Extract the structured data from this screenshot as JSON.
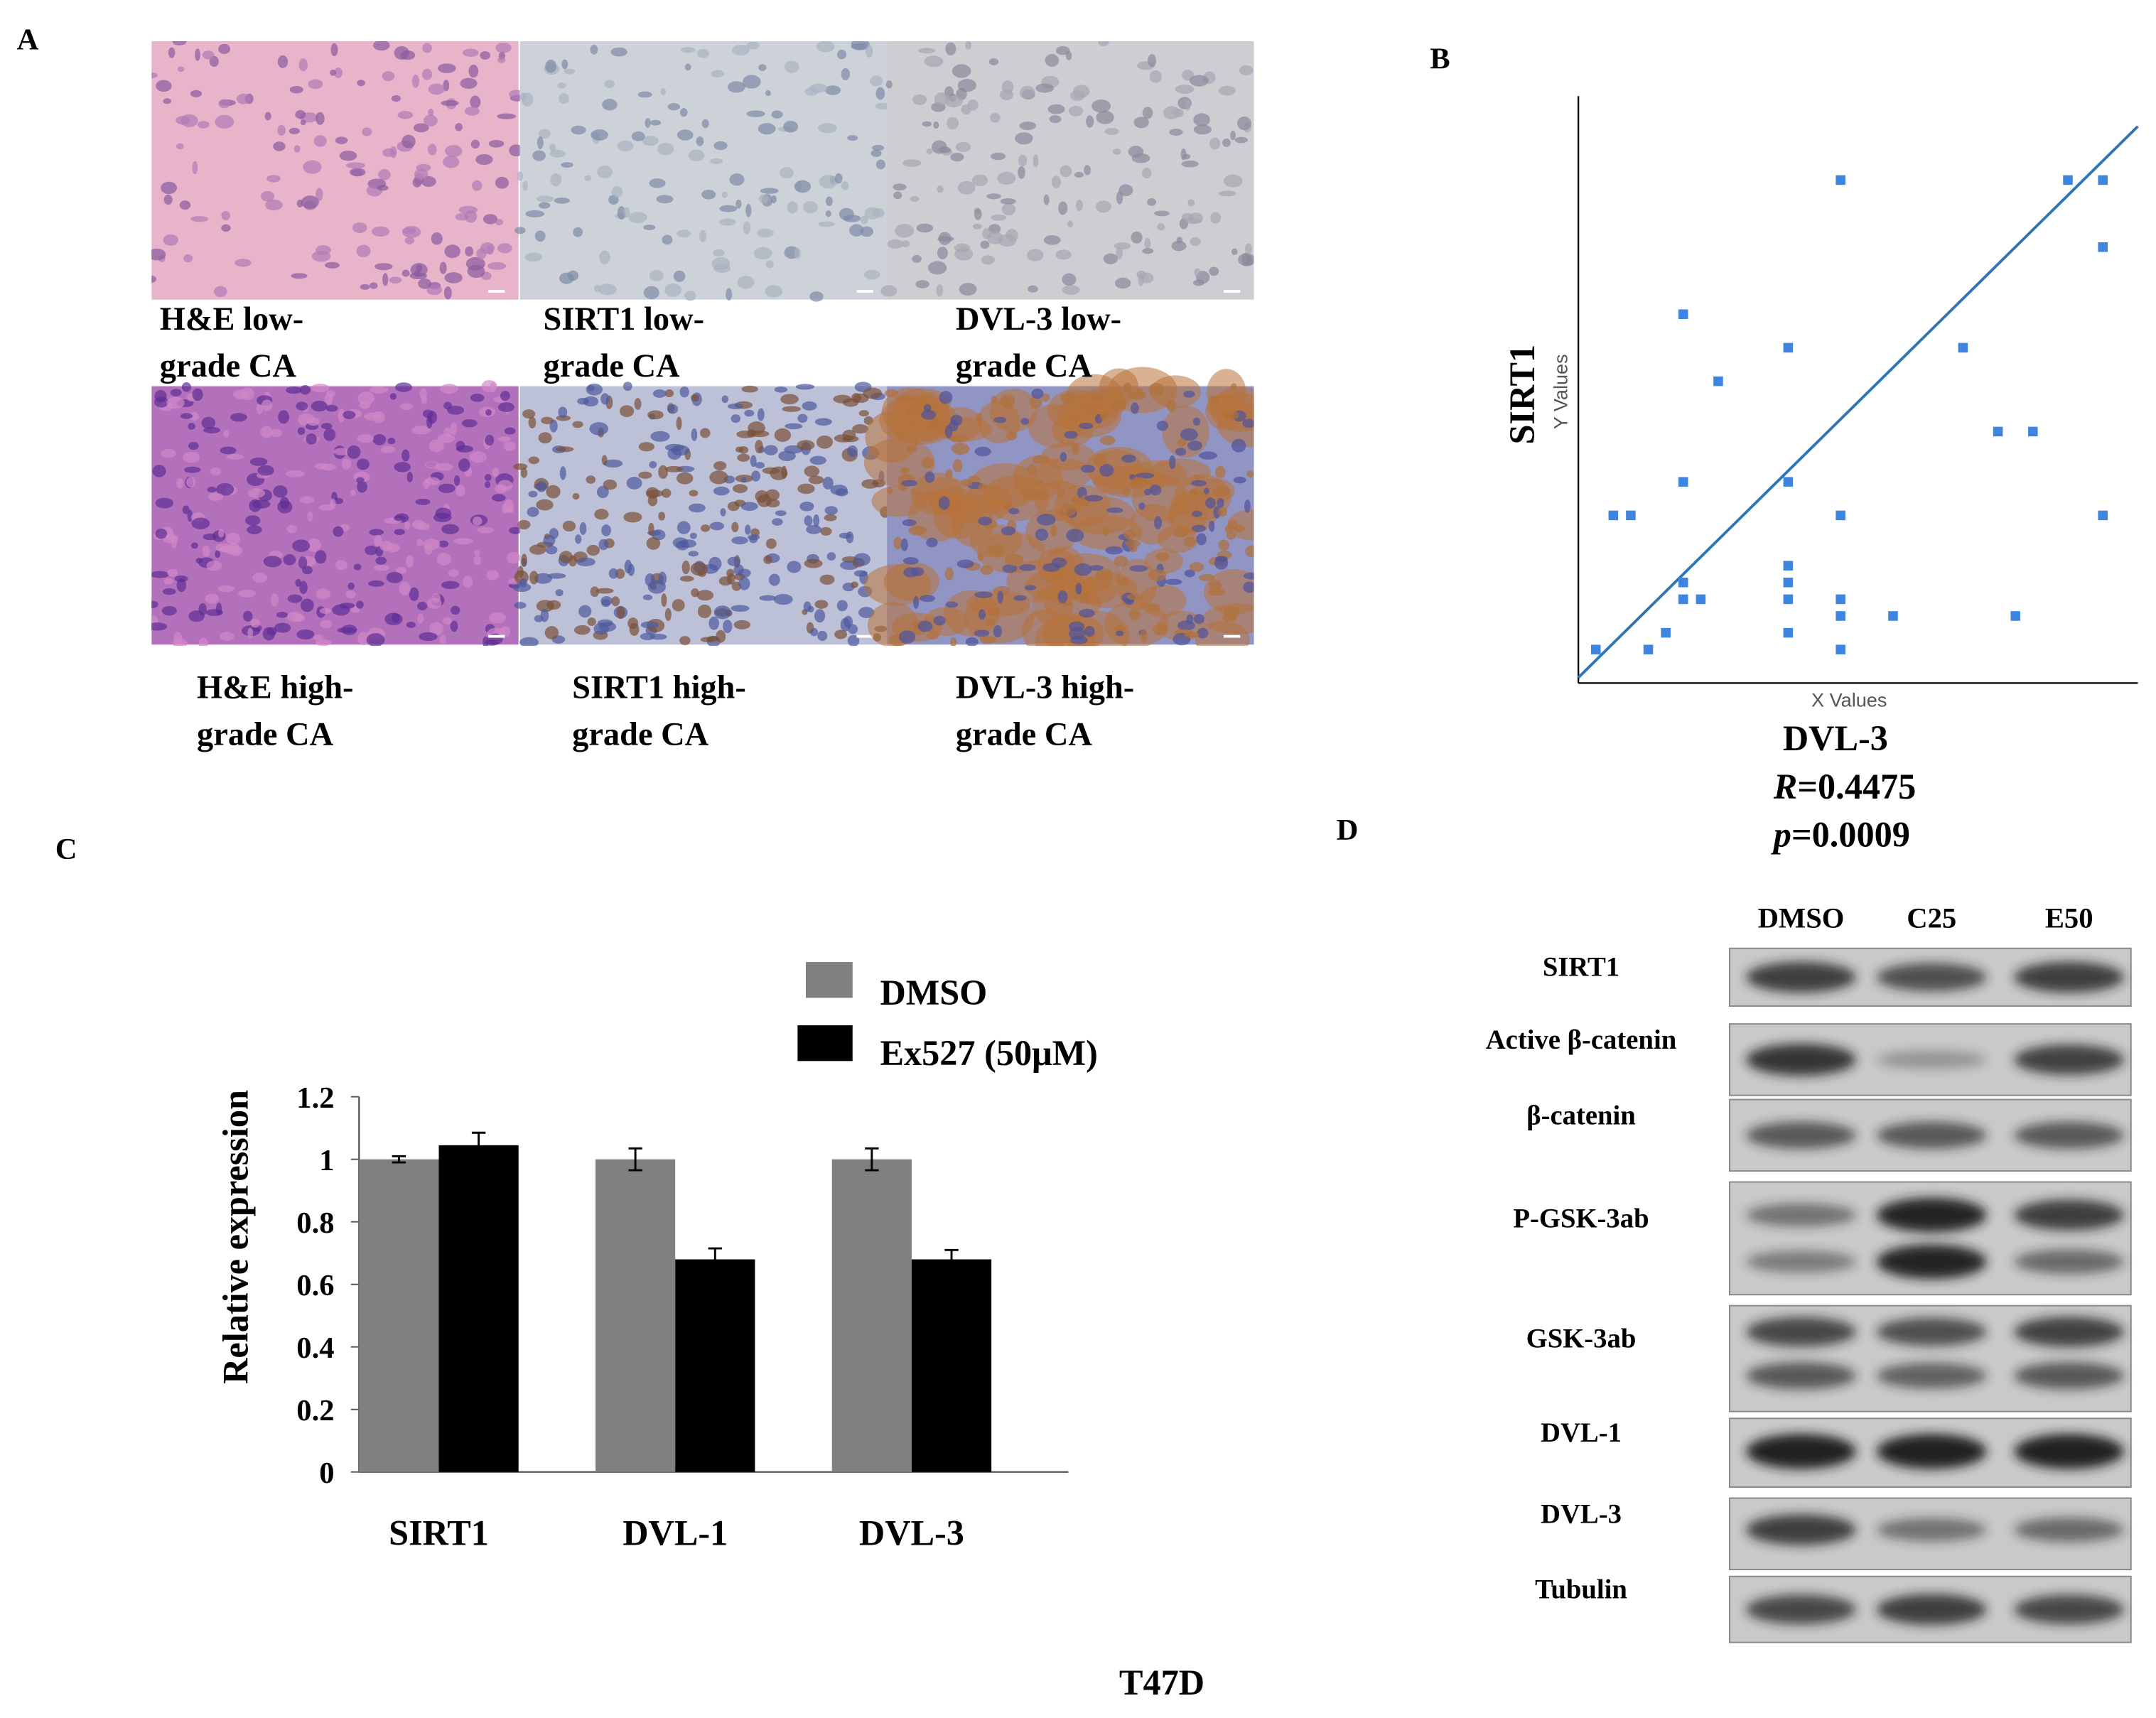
{
  "panel_labels": [
    "A",
    "B",
    "C",
    "D"
  ],
  "panel_a": {
    "images": [
      {
        "caption": [
          "H&E low-",
          "grade CA"
        ]
      },
      {
        "caption": [
          "SIRT1 low-",
          "grade CA"
        ]
      },
      {
        "caption": [
          "DVL-3 low-",
          "grade CA"
        ]
      },
      {
        "caption": [
          "H&E high-",
          "grade CA"
        ]
      },
      {
        "caption": [
          "SIRT1 high-",
          "grade CA"
        ]
      },
      {
        "caption": [
          "DVL-3 high-",
          "grade CA"
        ]
      }
    ]
  },
  "chart_data": [
    {
      "type": "scatter",
      "ylabel": "SIRT1",
      "xlabel": "DVL-3",
      "inner_ylabel": "Y Values",
      "inner_xlabel": "X Values",
      "annotations": [
        {
          "symbol": "R",
          "text": "=0.4475"
        },
        {
          "symbol": "p",
          "text": "=0.0009"
        }
      ],
      "color": "#3d85e0",
      "line_color": "#2e75b6",
      "x": [
        1,
        4,
        5,
        2,
        3,
        6,
        6,
        7,
        6,
        6,
        8,
        12,
        12,
        12,
        12,
        12,
        12,
        15,
        15,
        15,
        15,
        15,
        18,
        22,
        24,
        26,
        25,
        28,
        30,
        30,
        30
      ],
      "y": [
        1,
        1,
        2,
        9,
        9,
        5,
        4,
        4,
        11,
        21,
        17,
        19,
        11,
        6,
        5,
        4,
        2,
        29,
        9,
        4,
        3,
        1,
        3,
        19,
        14,
        14,
        3,
        29,
        29,
        25,
        9
      ],
      "fit": {
        "x": [
          0,
          32
        ],
        "y": [
          -0.67,
          32.2
        ]
      },
      "xlim": [
        0,
        32
      ],
      "ylim": [
        -1,
        34
      ]
    },
    {
      "type": "bar",
      "ylabel": "Relative expression",
      "xlabel": "T47D",
      "categories": [
        "SIRT1",
        "DVL-1",
        "DVL-3"
      ],
      "series": [
        {
          "name": "DMSO",
          "color": "#808080",
          "values": [
            1,
            1,
            1
          ],
          "errors": [
            0.01,
            0.035,
            0.035
          ]
        },
        {
          "name": "Ex527 (50μM)",
          "color": "#000000",
          "values": [
            1.045,
            0.68,
            0.68
          ],
          "errors": [
            0.04,
            0.035,
            0.03
          ]
        }
      ],
      "ylim": [
        0,
        1.2
      ],
      "yticks": [
        0,
        0.2,
        0.4,
        0.6,
        0.8,
        1,
        1.2
      ]
    }
  ],
  "panel_d": {
    "lanes": [
      "DMSO",
      "C25",
      "E50"
    ],
    "rows": [
      "SIRT1",
      "Active β-catenin",
      "β-catenin",
      "P-GSK-3ab",
      "GSK-3ab",
      "DVL-1",
      "DVL-3",
      "Tubulin"
    ]
  }
}
